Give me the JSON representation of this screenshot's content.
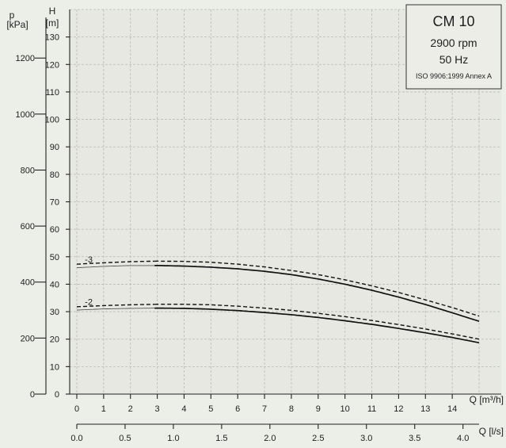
{
  "chart_data": {
    "type": "line",
    "info_box": {
      "model": "CM 10",
      "speed": "2900 rpm",
      "frequency": "50 Hz",
      "standard": "ISO 9906:1999 Annex A"
    },
    "left_axis_label": "p",
    "left_axis_unit": "[kPa]",
    "left_axis_ticks": [
      0,
      200,
      400,
      600,
      800,
      1000,
      1200
    ],
    "y_axis_label": "H",
    "y_axis_unit": "[m]",
    "y_ticks": [
      0,
      10,
      20,
      30,
      40,
      50,
      60,
      70,
      80,
      90,
      100,
      110,
      120,
      130
    ],
    "ylim": [
      0,
      140
    ],
    "x_label": "Q [m³/h]",
    "x_ticks": [
      0,
      1,
      2,
      3,
      4,
      5,
      6,
      7,
      8,
      9,
      10,
      11,
      12,
      13,
      14
    ],
    "xlim": [
      0,
      15
    ],
    "x2_label": "Q [l/s]",
    "x2_ticks": [
      "0.0",
      "0.5",
      "1.0",
      "1.5",
      "2.0",
      "2.5",
      "3.0",
      "3.5",
      "4.0"
    ],
    "grid": true,
    "series": [
      {
        "name": "-3",
        "style": "solid",
        "x": [
          0,
          1,
          2,
          3,
          4,
          5,
          6,
          7,
          8,
          9,
          10,
          11,
          12,
          13,
          14,
          15
        ],
        "values": [
          46.0,
          46.5,
          46.8,
          46.8,
          46.6,
          46.2,
          45.6,
          44.7,
          43.5,
          41.9,
          40.0,
          37.8,
          35.3,
          32.6,
          29.6,
          26.5
        ]
      },
      {
        "name": "-3",
        "style": "dashed",
        "x": [
          0,
          1,
          2,
          3,
          4,
          5,
          6,
          7,
          8,
          9,
          10,
          11,
          12,
          13,
          14,
          15
        ],
        "values": [
          47.3,
          47.8,
          48.2,
          48.4,
          48.3,
          48.0,
          47.3,
          46.3,
          45.0,
          43.5,
          41.6,
          39.4,
          37.0,
          34.3,
          31.5,
          28.4
        ]
      },
      {
        "name": "-2",
        "style": "solid",
        "x": [
          0,
          1,
          2,
          3,
          4,
          5,
          6,
          7,
          8,
          9,
          10,
          11,
          12,
          13,
          14,
          15
        ],
        "values": [
          30.6,
          31.0,
          31.2,
          31.3,
          31.2,
          30.9,
          30.4,
          29.7,
          28.9,
          27.9,
          26.7,
          25.4,
          23.9,
          22.3,
          20.6,
          18.7
        ]
      },
      {
        "name": "-2",
        "style": "dashed",
        "x": [
          0,
          1,
          2,
          3,
          4,
          5,
          6,
          7,
          8,
          9,
          10,
          11,
          12,
          13,
          14,
          15
        ],
        "values": [
          31.8,
          32.2,
          32.5,
          32.7,
          32.7,
          32.5,
          32.0,
          31.3,
          30.5,
          29.4,
          28.2,
          26.8,
          25.3,
          23.7,
          21.9,
          20.0
        ]
      }
    ],
    "highlight_range": [
      2.9,
      15
    ]
  }
}
